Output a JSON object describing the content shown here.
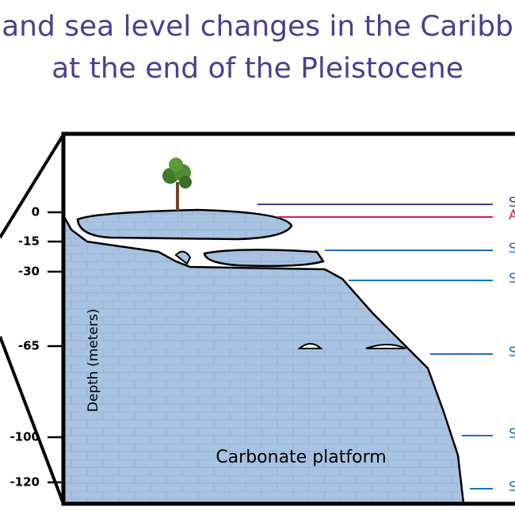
{
  "header": {
    "title_lines": [
      "and sea level changes in the Caribb",
      "at the end of the Pleistocene"
    ]
  },
  "depth_axis": {
    "label": "Depth (meters)",
    "ticks": [
      "0",
      "-15",
      "-30",
      "-65",
      "-100",
      "-120"
    ]
  },
  "platform_label": "Carbonate platform",
  "level_labels": [
    "S",
    "A",
    "S",
    "S",
    "S",
    "S",
    "S"
  ]
}
